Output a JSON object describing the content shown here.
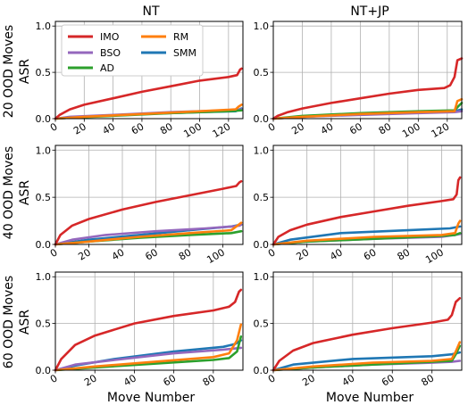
{
  "colors": {
    "IMO": "#d62728",
    "BSO": "#9467bd",
    "AD": "#2ca02c",
    "RM": "#ff7f0e",
    "SMM": "#1f77b4"
  },
  "legend": {
    "entries": [
      "IMO",
      "BSO",
      "AD",
      "RM",
      "SMM"
    ],
    "placement": "top-left",
    "columns": 2
  },
  "column_titles": [
    "NT",
    "NT+JP"
  ],
  "row_labels": [
    "20 OOD Moves",
    "40 OOD Moves",
    "60 OOD Moves"
  ],
  "ylabel": "ASR",
  "xlabel": "Move Number",
  "yticks": [
    "0.0",
    "0.5",
    "1.0"
  ],
  "chart_data": [
    {
      "type": "line",
      "panel": "row1-NT",
      "title": "NT",
      "xlim": [
        0,
        130
      ],
      "ylim": [
        0,
        1.05
      ],
      "xticks": [
        0,
        20,
        40,
        60,
        80,
        100,
        120
      ],
      "grid": true,
      "series": [
        {
          "name": "IMO",
          "x": [
            0,
            3,
            10,
            20,
            40,
            60,
            80,
            100,
            120,
            126,
            128,
            129
          ],
          "y": [
            0,
            0.04,
            0.1,
            0.15,
            0.22,
            0.29,
            0.35,
            0.41,
            0.45,
            0.47,
            0.53,
            0.54
          ]
        },
        {
          "name": "BSO",
          "x": [
            0,
            10,
            40,
            80,
            120,
            129
          ],
          "y": [
            0,
            0.02,
            0.04,
            0.07,
            0.09,
            0.1
          ]
        },
        {
          "name": "AD",
          "x": [
            0,
            10,
            40,
            80,
            120,
            129
          ],
          "y": [
            0,
            0.01,
            0.03,
            0.06,
            0.08,
            0.09
          ]
        },
        {
          "name": "RM",
          "x": [
            0,
            20,
            60,
            100,
            125,
            127,
            129
          ],
          "y": [
            0,
            0.02,
            0.05,
            0.08,
            0.1,
            0.13,
            0.15
          ]
        },
        {
          "name": "SMM",
          "x": [
            0,
            20,
            60,
            100,
            125,
            129
          ],
          "y": [
            0,
            0.02,
            0.05,
            0.07,
            0.08,
            0.11
          ]
        }
      ]
    },
    {
      "type": "line",
      "panel": "row1-NTJP",
      "title": "NT+JP",
      "xlim": [
        0,
        130
      ],
      "ylim": [
        0,
        1.05
      ],
      "xticks": [
        0,
        20,
        40,
        60,
        80,
        100,
        120
      ],
      "grid": true,
      "series": [
        {
          "name": "IMO",
          "x": [
            0,
            3,
            10,
            20,
            40,
            60,
            80,
            100,
            118,
            122,
            125,
            127,
            130
          ],
          "y": [
            0,
            0.03,
            0.07,
            0.11,
            0.17,
            0.22,
            0.27,
            0.31,
            0.33,
            0.36,
            0.45,
            0.63,
            0.65
          ]
        },
        {
          "name": "BSO",
          "x": [
            0,
            20,
            60,
            100,
            125,
            130
          ],
          "y": [
            0,
            0.02,
            0.04,
            0.06,
            0.07,
            0.08
          ]
        },
        {
          "name": "AD",
          "x": [
            0,
            20,
            60,
            100,
            125,
            128,
            130
          ],
          "y": [
            0,
            0.03,
            0.06,
            0.08,
            0.09,
            0.14,
            0.17
          ]
        },
        {
          "name": "RM",
          "x": [
            0,
            20,
            60,
            100,
            125,
            127,
            130
          ],
          "y": [
            0,
            0.02,
            0.05,
            0.07,
            0.08,
            0.19,
            0.21
          ]
        },
        {
          "name": "SMM",
          "x": [
            0,
            20,
            60,
            100,
            125,
            130
          ],
          "y": [
            0,
            0.02,
            0.05,
            0.07,
            0.08,
            0.1
          ]
        }
      ]
    },
    {
      "type": "line",
      "panel": "row2-NT",
      "title": "NT",
      "xlim": [
        0,
        112
      ],
      "ylim": [
        0,
        1.05
      ],
      "xticks": [
        0,
        20,
        40,
        60,
        80,
        100
      ],
      "grid": true,
      "series": [
        {
          "name": "IMO",
          "x": [
            0,
            3,
            10,
            20,
            40,
            60,
            80,
            100,
            108,
            110,
            111
          ],
          "y": [
            0,
            0.1,
            0.2,
            0.27,
            0.37,
            0.45,
            0.52,
            0.59,
            0.62,
            0.66,
            0.67
          ]
        },
        {
          "name": "BSO",
          "x": [
            0,
            10,
            30,
            60,
            90,
            105,
            110,
            111
          ],
          "y": [
            0,
            0.05,
            0.1,
            0.14,
            0.17,
            0.19,
            0.2,
            0.21
          ]
        },
        {
          "name": "AD",
          "x": [
            0,
            20,
            50,
            80,
            105,
            111
          ],
          "y": [
            0,
            0.03,
            0.07,
            0.1,
            0.12,
            0.14
          ]
        },
        {
          "name": "RM",
          "x": [
            0,
            20,
            50,
            80,
            105,
            108,
            111
          ],
          "y": [
            0,
            0.03,
            0.08,
            0.12,
            0.15,
            0.19,
            0.23
          ]
        },
        {
          "name": "SMM",
          "x": [
            0,
            20,
            50,
            80,
            105,
            111
          ],
          "y": [
            0,
            0.05,
            0.1,
            0.15,
            0.19,
            0.21
          ]
        }
      ]
    },
    {
      "type": "line",
      "panel": "row2-NTJP",
      "title": "NT+JP",
      "xlim": [
        0,
        112
      ],
      "ylim": [
        0,
        1.05
      ],
      "xticks": [
        0,
        20,
        40,
        60,
        80,
        100
      ],
      "grid": true,
      "series": [
        {
          "name": "IMO",
          "x": [
            0,
            3,
            10,
            20,
            40,
            60,
            80,
            100,
            107,
            109,
            110,
            111
          ],
          "y": [
            0,
            0.08,
            0.15,
            0.21,
            0.29,
            0.35,
            0.41,
            0.46,
            0.48,
            0.53,
            0.68,
            0.71
          ]
        },
        {
          "name": "BSO",
          "x": [
            0,
            20,
            60,
            100,
            108,
            111
          ],
          "y": [
            0,
            0.03,
            0.06,
            0.08,
            0.1,
            0.11
          ]
        },
        {
          "name": "AD",
          "x": [
            0,
            20,
            60,
            100,
            108,
            111
          ],
          "y": [
            0,
            0.03,
            0.06,
            0.09,
            0.1,
            0.12
          ]
        },
        {
          "name": "RM",
          "x": [
            0,
            20,
            60,
            100,
            108,
            110,
            111
          ],
          "y": [
            0,
            0.04,
            0.08,
            0.1,
            0.12,
            0.22,
            0.25
          ]
        },
        {
          "name": "SMM",
          "x": [
            0,
            10,
            40,
            80,
            105,
            111
          ],
          "y": [
            0,
            0.05,
            0.12,
            0.15,
            0.17,
            0.19
          ]
        }
      ]
    },
    {
      "type": "line",
      "panel": "row3-NT",
      "title": "NT",
      "xlim": [
        0,
        95
      ],
      "ylim": [
        0,
        1.05
      ],
      "xticks": [
        0,
        20,
        40,
        60,
        80
      ],
      "grid": true,
      "series": [
        {
          "name": "IMO",
          "x": [
            0,
            3,
            10,
            20,
            40,
            60,
            80,
            88,
            91,
            93,
            94
          ],
          "y": [
            0,
            0.12,
            0.27,
            0.37,
            0.5,
            0.58,
            0.64,
            0.68,
            0.73,
            0.84,
            0.86
          ]
        },
        {
          "name": "BSO",
          "x": [
            0,
            10,
            30,
            60,
            85,
            94
          ],
          "y": [
            0,
            0.06,
            0.11,
            0.18,
            0.22,
            0.24
          ]
        },
        {
          "name": "AD",
          "x": [
            0,
            20,
            50,
            80,
            88,
            92,
            94
          ],
          "y": [
            0,
            0.03,
            0.07,
            0.11,
            0.13,
            0.2,
            0.36
          ]
        },
        {
          "name": "RM",
          "x": [
            0,
            20,
            50,
            80,
            88,
            92,
            94
          ],
          "y": [
            0,
            0.04,
            0.09,
            0.14,
            0.18,
            0.32,
            0.49
          ]
        },
        {
          "name": "SMM",
          "x": [
            0,
            10,
            30,
            60,
            85,
            91,
            94
          ],
          "y": [
            0,
            0.05,
            0.12,
            0.2,
            0.25,
            0.28,
            0.32
          ]
        }
      ]
    },
    {
      "type": "line",
      "panel": "row3-NTJP",
      "title": "NT+JP",
      "xlim": [
        0,
        95
      ],
      "ylim": [
        0,
        1.05
      ],
      "xticks": [
        0,
        20,
        40,
        60,
        80
      ],
      "grid": true,
      "series": [
        {
          "name": "IMO",
          "x": [
            0,
            3,
            10,
            20,
            40,
            60,
            80,
            88,
            90,
            92,
            94
          ],
          "y": [
            0,
            0.1,
            0.21,
            0.29,
            0.38,
            0.45,
            0.51,
            0.54,
            0.59,
            0.73,
            0.77
          ]
        },
        {
          "name": "BSO",
          "x": [
            0,
            20,
            50,
            80,
            90,
            94
          ],
          "y": [
            0,
            0.03,
            0.06,
            0.08,
            0.09,
            0.1
          ]
        },
        {
          "name": "AD",
          "x": [
            0,
            20,
            50,
            80,
            90,
            92,
            94
          ],
          "y": [
            0,
            0.03,
            0.06,
            0.09,
            0.1,
            0.17,
            0.26
          ]
        },
        {
          "name": "RM",
          "x": [
            0,
            20,
            50,
            80,
            90,
            92,
            94
          ],
          "y": [
            0,
            0.04,
            0.08,
            0.1,
            0.12,
            0.2,
            0.3
          ]
        },
        {
          "name": "SMM",
          "x": [
            0,
            10,
            40,
            80,
            90,
            94
          ],
          "y": [
            0,
            0.06,
            0.12,
            0.15,
            0.17,
            0.19
          ]
        }
      ]
    }
  ]
}
